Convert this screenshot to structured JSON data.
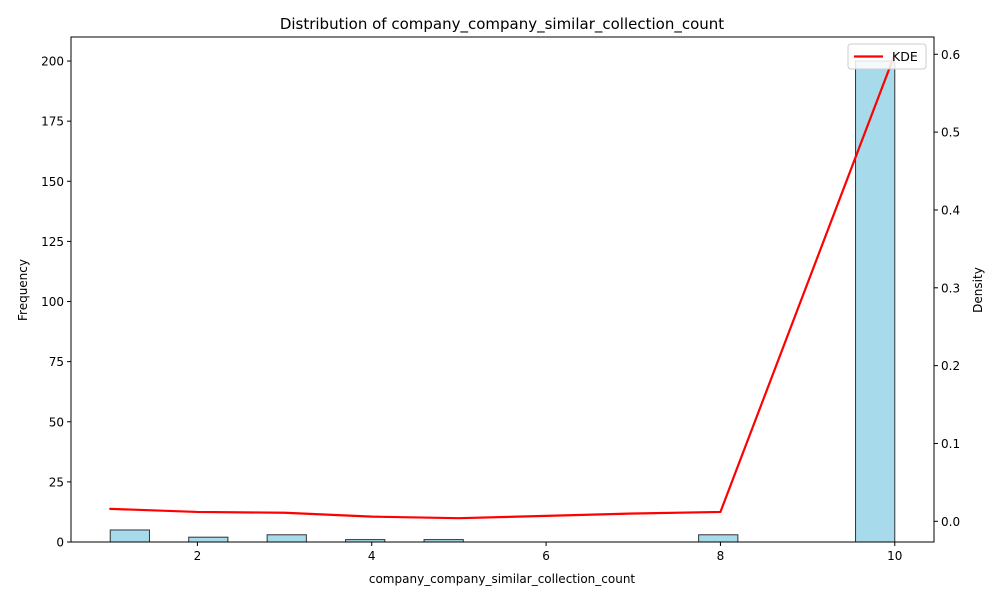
{
  "chart_data": {
    "type": "bar",
    "title": "Distribution of company_company_similar_collection_count",
    "xlabel": "company_company_similar_collection_count",
    "ylabel": "Frequency",
    "y2label": "Density",
    "xlim": [
      0.55,
      10.45
    ],
    "ylim": [
      0,
      210
    ],
    "y2lim": [
      -0.0266,
      0.6222
    ],
    "xticks": [
      2,
      4,
      6,
      8,
      10
    ],
    "yticks": [
      0,
      25,
      50,
      75,
      100,
      125,
      150,
      175,
      200
    ],
    "y2ticks": [
      0.0,
      0.1,
      0.2,
      0.3,
      0.4,
      0.5,
      0.6
    ],
    "bins": [
      {
        "x0": 1.0,
        "x1": 1.45,
        "count": 5
      },
      {
        "x0": 1.45,
        "x1": 1.9,
        "count": 0
      },
      {
        "x0": 1.9,
        "x1": 2.35,
        "count": 2
      },
      {
        "x0": 2.35,
        "x1": 2.8,
        "count": 0
      },
      {
        "x0": 2.8,
        "x1": 3.25,
        "count": 3
      },
      {
        "x0": 3.25,
        "x1": 3.7,
        "count": 0
      },
      {
        "x0": 3.7,
        "x1": 4.15,
        "count": 1
      },
      {
        "x0": 4.15,
        "x1": 4.6,
        "count": 0
      },
      {
        "x0": 4.6,
        "x1": 5.05,
        "count": 1
      },
      {
        "x0": 5.05,
        "x1": 5.5,
        "count": 0
      },
      {
        "x0": 5.5,
        "x1": 5.95,
        "count": 0
      },
      {
        "x0": 5.95,
        "x1": 6.4,
        "count": 0
      },
      {
        "x0": 6.4,
        "x1": 6.85,
        "count": 0
      },
      {
        "x0": 6.85,
        "x1": 7.3,
        "count": 0
      },
      {
        "x0": 7.3,
        "x1": 7.75,
        "count": 0
      },
      {
        "x0": 7.75,
        "x1": 8.2,
        "count": 3
      },
      {
        "x0": 8.2,
        "x1": 8.65,
        "count": 0
      },
      {
        "x0": 8.65,
        "x1": 9.1,
        "count": 0
      },
      {
        "x0": 9.1,
        "x1": 9.55,
        "count": 0
      },
      {
        "x0": 9.55,
        "x1": 10.0,
        "count": 200
      }
    ],
    "series": [
      {
        "name": "KDE",
        "type": "line",
        "axis": "right",
        "x": [
          1,
          2,
          3,
          4,
          5,
          6,
          7,
          8,
          10
        ],
        "values": [
          0.016,
          0.012,
          0.011,
          0.006,
          0.004,
          0.007,
          0.01,
          0.012,
          0.6
        ]
      }
    ],
    "colors": {
      "bar_fill": "#a7dbec",
      "bar_edge": "#333333",
      "kde": "#ff0000"
    },
    "legend": {
      "placement": "top-right",
      "entries": [
        "KDE"
      ]
    },
    "grid": false
  }
}
